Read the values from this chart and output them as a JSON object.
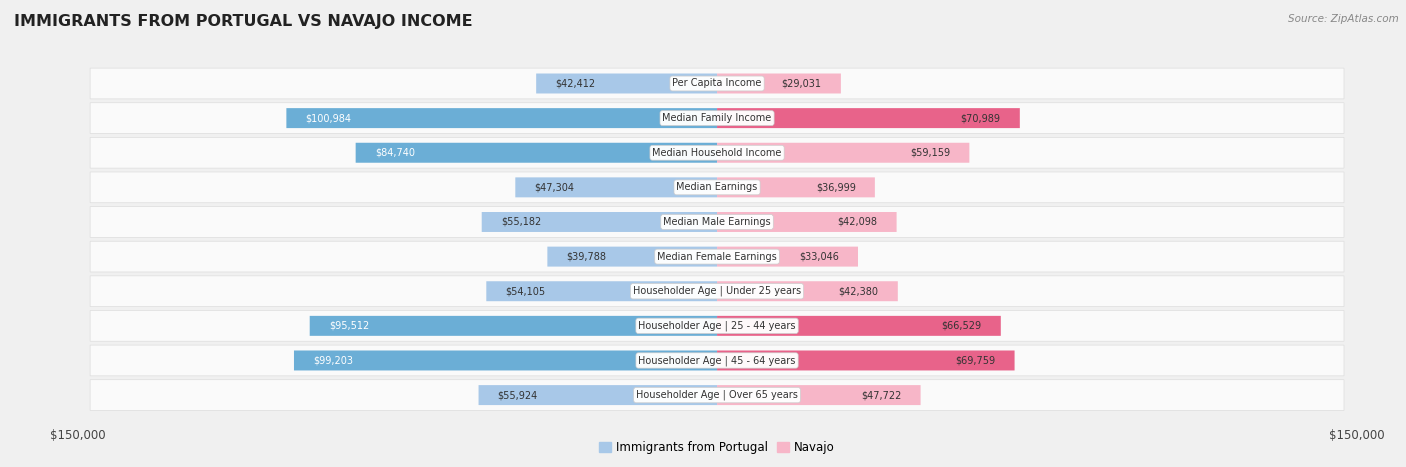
{
  "title": "IMMIGRANTS FROM PORTUGAL VS NAVAJO INCOME",
  "source": "Source: ZipAtlas.com",
  "categories": [
    "Per Capita Income",
    "Median Family Income",
    "Median Household Income",
    "Median Earnings",
    "Median Male Earnings",
    "Median Female Earnings",
    "Householder Age | Under 25 years",
    "Householder Age | 25 - 44 years",
    "Householder Age | 45 - 64 years",
    "Householder Age | Over 65 years"
  ],
  "portugal_values": [
    42412,
    100984,
    84740,
    47304,
    55182,
    39788,
    54105,
    95512,
    99203,
    55924
  ],
  "navajo_values": [
    29031,
    70989,
    59159,
    36999,
    42098,
    33046,
    42380,
    66529,
    69759,
    47722
  ],
  "portugal_labels": [
    "$42,412",
    "$100,984",
    "$84,740",
    "$47,304",
    "$55,182",
    "$39,788",
    "$54,105",
    "$95,512",
    "$99,203",
    "$55,924"
  ],
  "navajo_labels": [
    "$29,031",
    "$70,989",
    "$59,159",
    "$36,999",
    "$42,098",
    "$33,046",
    "$42,380",
    "$66,529",
    "$69,759",
    "$47,722"
  ],
  "portugal_color_light": "#a8c8e8",
  "portugal_color_dark": "#6baed6",
  "navajo_color_light": "#f7b6c8",
  "navajo_color_dark": "#e8638a",
  "max_value": 150000,
  "bg_color": "#f0f0f0",
  "row_bg": "#fafafa",
  "row_border": "#dddddd",
  "white": "#ffffff",
  "dark_text": "#333333",
  "light_text": "#ffffff",
  "legend_label_1": "Immigrants from Portugal",
  "legend_label_2": "Navajo",
  "axis_label_left": "$150,000",
  "axis_label_right": "$150,000"
}
